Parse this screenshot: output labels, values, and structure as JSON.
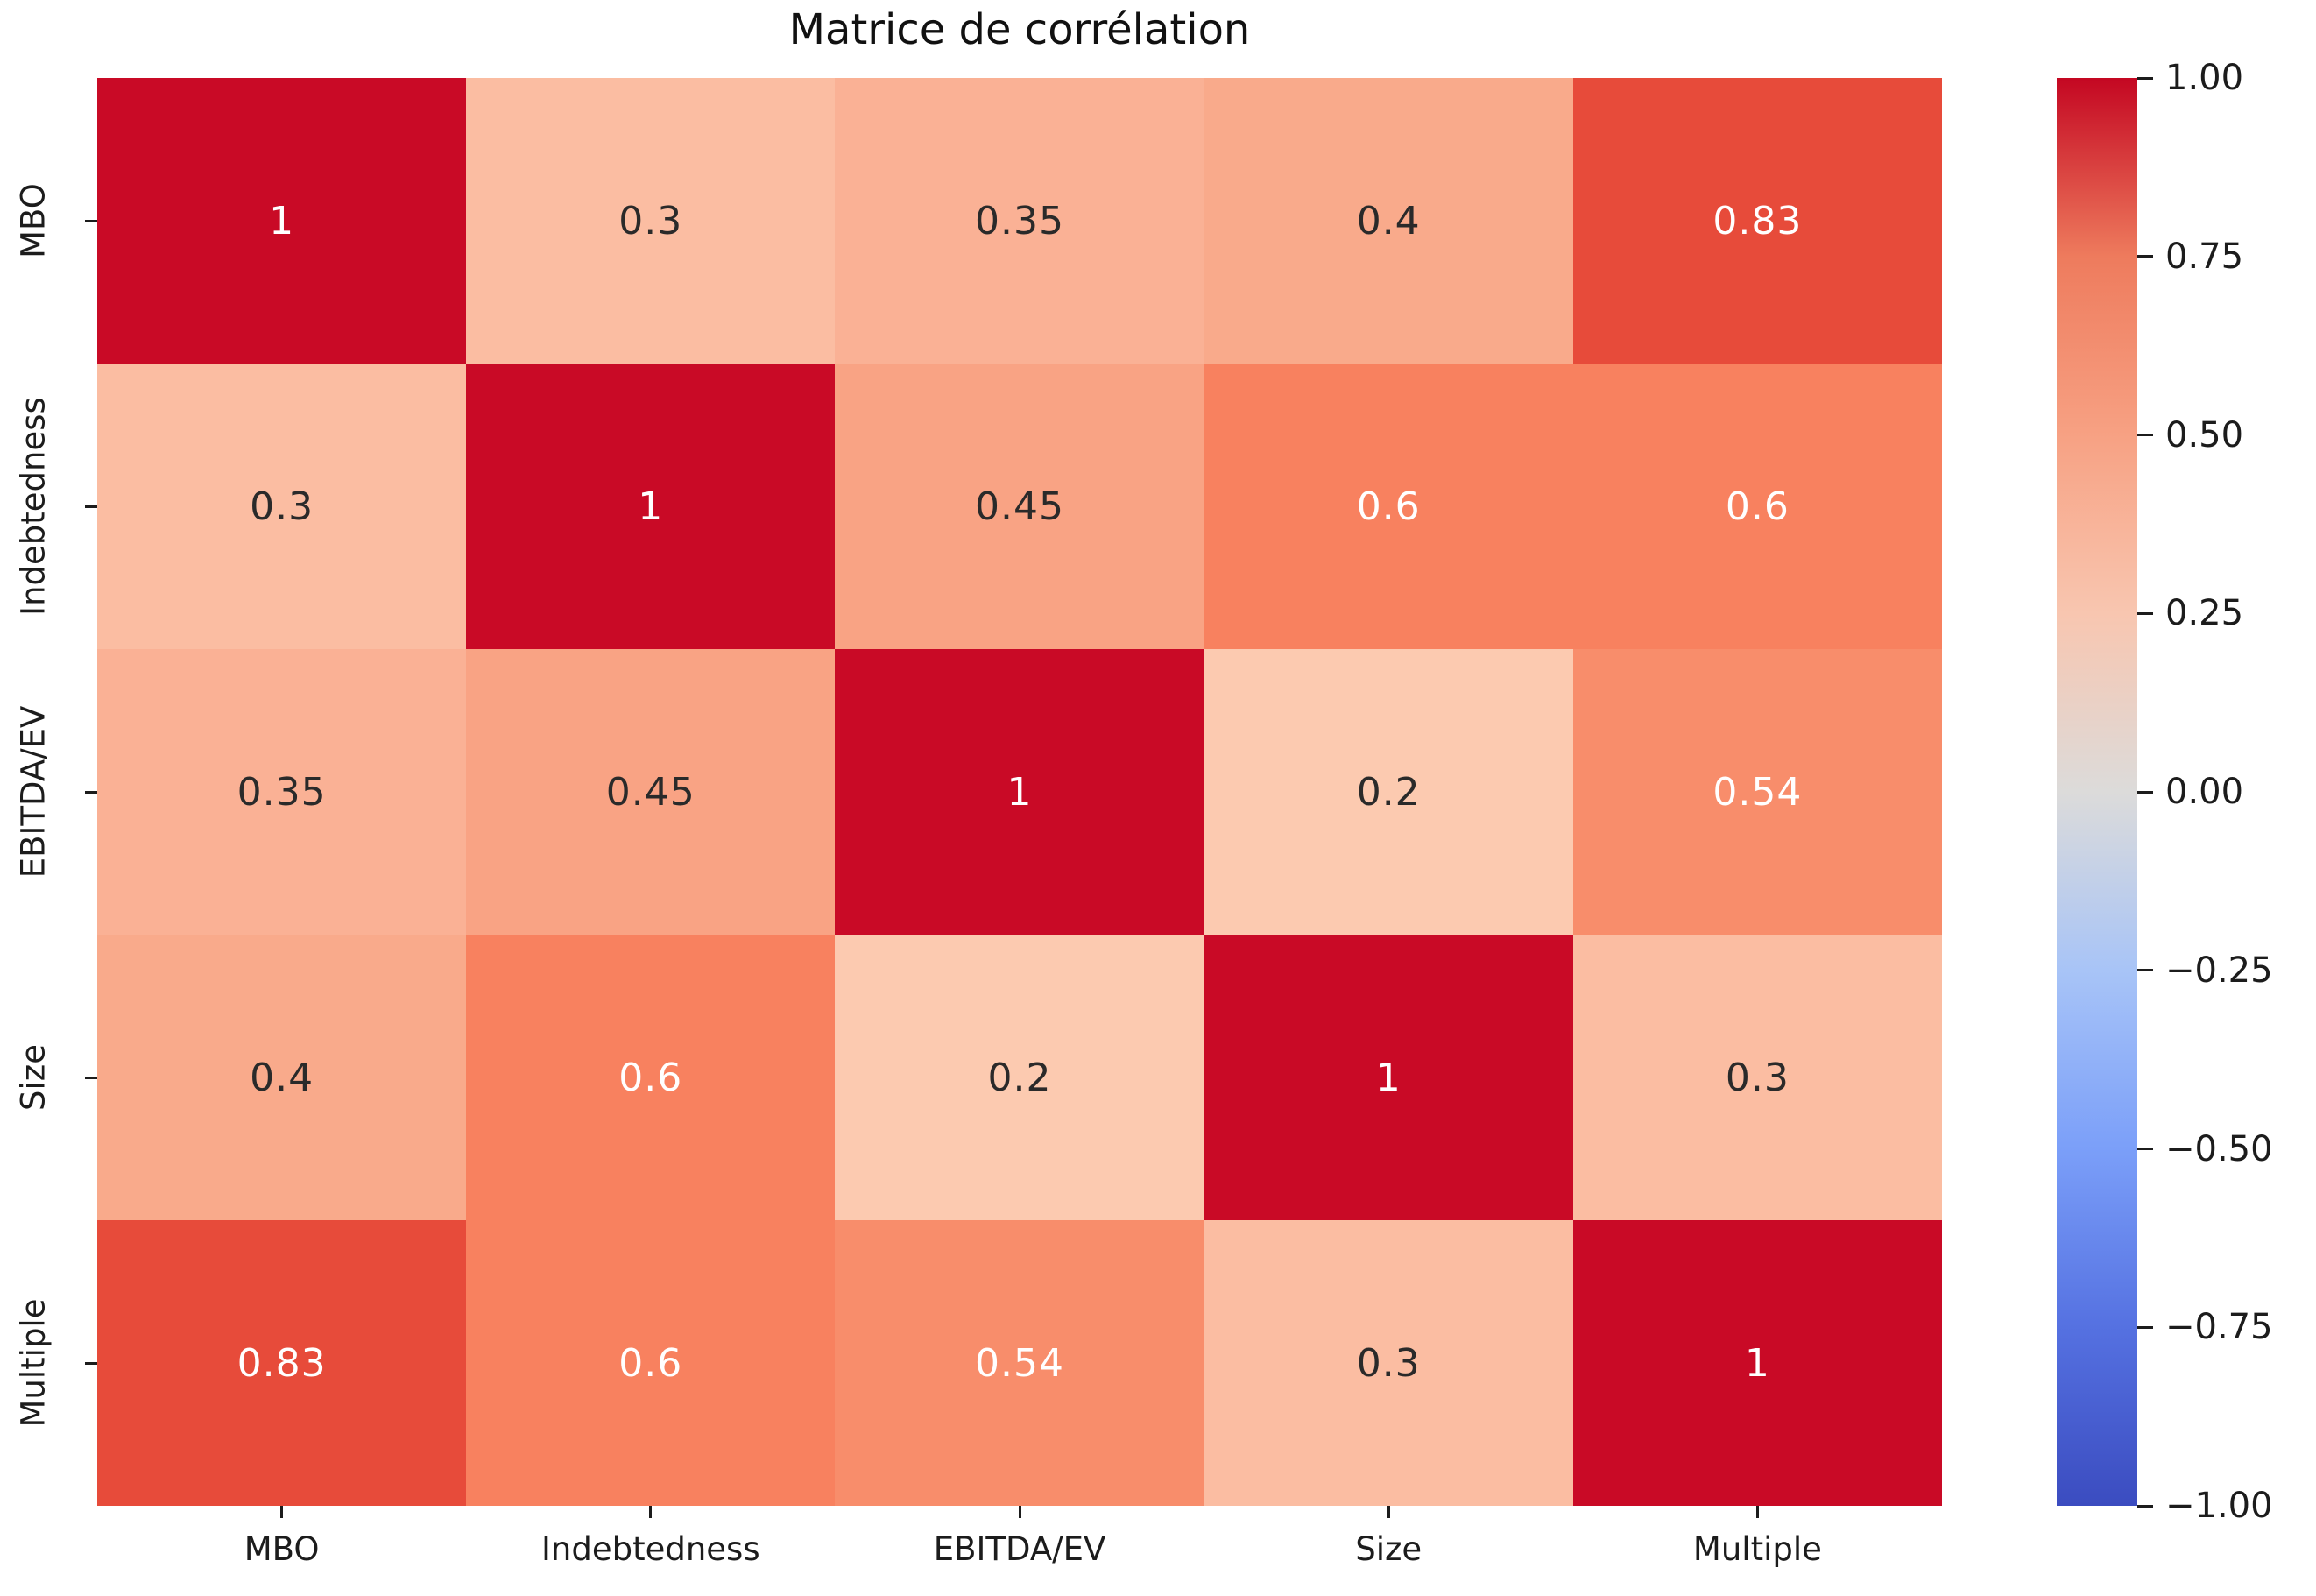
{
  "title": "Matrice de corrélation",
  "chart_data": {
    "type": "heatmap",
    "title": "Matrice de corrélation",
    "categories": [
      "MBO",
      "Indebtedness",
      "EBITDA/EV",
      "Size",
      "Multiple"
    ],
    "matrix": [
      [
        1.0,
        0.3,
        0.35,
        0.4,
        0.83
      ],
      [
        0.3,
        1.0,
        0.45,
        0.6,
        0.6
      ],
      [
        0.35,
        0.45,
        1.0,
        0.2,
        0.54
      ],
      [
        0.4,
        0.6,
        0.2,
        1.0,
        0.3
      ],
      [
        0.83,
        0.6,
        0.54,
        0.3,
        1.0
      ]
    ],
    "cell_labels": [
      [
        "1",
        "0.3",
        "0.35",
        "0.4",
        "0.83"
      ],
      [
        "0.3",
        "1",
        "0.45",
        "0.6",
        "0.6"
      ],
      [
        "0.35",
        "0.45",
        "1",
        "0.2",
        "0.54"
      ],
      [
        "0.4",
        "0.6",
        "0.2",
        "1",
        "0.3"
      ],
      [
        "0.83",
        "0.6",
        "0.54",
        "0.3",
        "1"
      ]
    ],
    "colormap": "coolwarm",
    "vmin": -1.0,
    "vmax": 1.0,
    "grid": false,
    "legend_position": "right-colorbar",
    "cell_colors": {
      "1": "#c90a26",
      "0.83": "#e74b3a",
      "0.6": "#f8815f",
      "0.54": "#f88d6b",
      "0.45": "#f9a384",
      "0.4": "#f9aa8b",
      "0.35": "#fab195",
      "0.3": "#fbbda2",
      "0.2": "#fccab0"
    },
    "annotation_text_light": "#ffffff",
    "annotation_text_dark": "#2a2a2a",
    "white_text_threshold": 0.5,
    "colorbar_ticks": [
      "1.00",
      "0.75",
      "0.50",
      "0.25",
      "0.00",
      "−0.25",
      "−0.50",
      "−0.75",
      "−1.00"
    ],
    "colorbar_stops": [
      {
        "value": 1.0,
        "color": "#c40722"
      },
      {
        "value": 0.75,
        "color": "#ee7b5d"
      },
      {
        "value": 0.5,
        "color": "#f7a183"
      },
      {
        "value": 0.25,
        "color": "#f8c6b0"
      },
      {
        "value": 0.0,
        "color": "#dcdbda"
      },
      {
        "value": -0.25,
        "color": "#a8c4f7"
      },
      {
        "value": -0.5,
        "color": "#7b9ff9"
      },
      {
        "value": -0.75,
        "color": "#5571e1"
      },
      {
        "value": -1.0,
        "color": "#3b4cc0"
      }
    ],
    "axis_tick_color": "#1c1c1c",
    "background_color": "#ffffff"
  }
}
